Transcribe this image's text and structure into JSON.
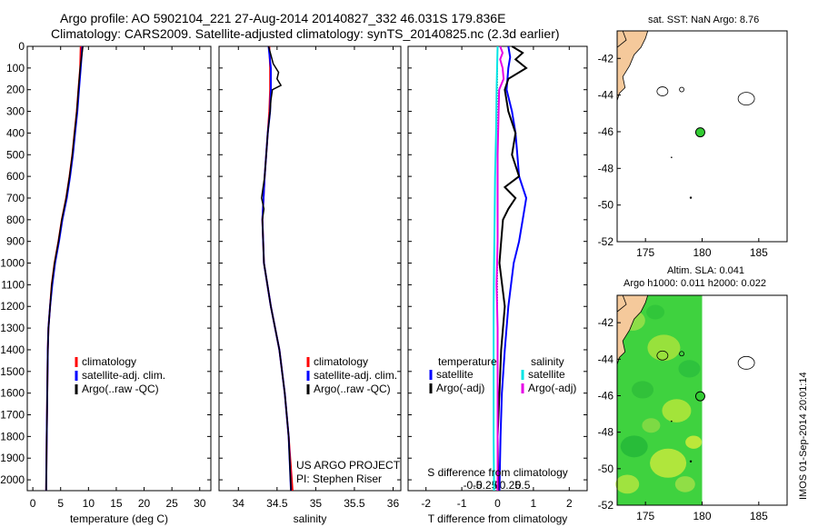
{
  "header": {
    "line1": "Argo profile: AO 5902104_221 27-Aug-2014 20140827_332 46.031S 179.836E",
    "line2": "Climatology: CARS2009. Satellite-adjusted climatology: synTS_20140825.nc (2.3d earlier)"
  },
  "stamp": "IMOS 01-Sep-2014 20:01:14",
  "colors": {
    "climatology": "#ff0000",
    "satellite": "#0000ff",
    "argo": "#000000",
    "sat_salinity": "#00e5e5",
    "argo_salinity": "#e600e6",
    "land": "#f5c99b",
    "sla_green": "#3fd23f",
    "marker": "#33cc33"
  },
  "chart_data": [
    {
      "type": "line",
      "id": "temperature",
      "xlabel": "temperature (deg C)",
      "ylabel": "",
      "xlim": [
        -1,
        32
      ],
      "ylim": [
        2050,
        0
      ],
      "xticks": [
        0,
        5,
        10,
        15,
        20,
        25,
        30
      ],
      "yticks": [
        0,
        100,
        200,
        300,
        400,
        500,
        600,
        700,
        800,
        900,
        1000,
        1100,
        1200,
        1300,
        1400,
        1500,
        1600,
        1700,
        1800,
        1900,
        2000
      ],
      "legend": [
        "climatology",
        "satellite-adj. clim.",
        "Argo(..raw -QC)"
      ],
      "series": [
        {
          "name": "climatology",
          "depth": [
            0,
            100,
            200,
            300,
            400,
            500,
            600,
            700,
            800,
            900,
            1000,
            1100,
            1200,
            1300,
            1400,
            1600,
            1800,
            2050
          ],
          "values": [
            8.6,
            8.5,
            8.2,
            7.9,
            7.5,
            7.1,
            6.6,
            6.0,
            5.2,
            4.6,
            3.9,
            3.4,
            3.1,
            2.8,
            2.7,
            2.6,
            2.5,
            2.4
          ]
        },
        {
          "name": "satellite-adj. clim.",
          "depth": [
            0,
            100,
            200,
            300,
            400,
            500,
            600,
            700,
            800,
            900,
            1000,
            1100,
            1200,
            1300,
            1400,
            1600,
            1800,
            2050
          ],
          "values": [
            8.9,
            8.6,
            8.3,
            8.0,
            7.6,
            7.2,
            6.7,
            6.1,
            5.3,
            4.7,
            4.0,
            3.5,
            3.1,
            2.8,
            2.7,
            2.6,
            2.5,
            2.4
          ]
        },
        {
          "name": "Argo(..raw -QC)",
          "depth": [
            0,
            100,
            200,
            300,
            400,
            500,
            600,
            700,
            800,
            900,
            1000,
            1100,
            1200,
            1300,
            1400,
            1600,
            1800,
            2050
          ],
          "values": [
            9.0,
            8.5,
            8.2,
            7.9,
            7.5,
            7.1,
            6.6,
            6.0,
            5.2,
            4.6,
            3.9,
            3.4,
            3.1,
            2.8,
            2.7,
            2.6,
            2.5,
            2.4
          ]
        }
      ]
    },
    {
      "type": "line",
      "id": "salinity",
      "xlabel": "salinity",
      "xlim": [
        33.75,
        36.1
      ],
      "ylim": [
        2050,
        0
      ],
      "xticks": [
        34,
        34.5,
        35,
        35.5,
        36
      ],
      "legend": [
        "climatology",
        "satellite-adj. clim.",
        "Argo(..raw -QC)"
      ],
      "annotation": [
        "US ARGO PROJECT",
        "PI: Stephen Riser"
      ],
      "series": [
        {
          "name": "climatology",
          "depth": [
            0,
            100,
            200,
            300,
            400,
            600,
            800,
            1000,
            1200,
            1400,
            1600,
            1800,
            2050
          ],
          "values": [
            34.4,
            34.41,
            34.41,
            34.4,
            34.38,
            34.34,
            34.31,
            34.33,
            34.42,
            34.53,
            34.6,
            34.65,
            34.7
          ]
        },
        {
          "name": "satellite-adj. clim.",
          "depth": [
            0,
            100,
            200,
            300,
            400,
            600,
            800,
            1000,
            1200,
            1400,
            1600,
            1800,
            2050
          ],
          "values": [
            34.39,
            34.42,
            34.42,
            34.41,
            34.38,
            34.34,
            34.31,
            34.33,
            34.42,
            34.53,
            34.6,
            34.65,
            34.68
          ]
        },
        {
          "name": "Argo(..raw -QC)",
          "depth": [
            0,
            80,
            120,
            150,
            180,
            200,
            250,
            300,
            400,
            600,
            700,
            750,
            800,
            1000,
            1200,
            1400,
            1600,
            1800,
            2050
          ],
          "values": [
            34.39,
            34.45,
            34.52,
            34.5,
            34.55,
            34.44,
            34.42,
            34.41,
            34.38,
            34.34,
            34.3,
            34.33,
            34.31,
            34.33,
            34.42,
            34.53,
            34.6,
            34.65,
            34.68
          ]
        }
      ]
    },
    {
      "type": "line",
      "id": "difference",
      "xlabel": "T difference from climatology",
      "xlabel_top": "S difference from climatology",
      "xlim": [
        -2.5,
        2.5
      ],
      "ylim": [
        2050,
        0
      ],
      "xticks": [
        -2,
        -1,
        0,
        1,
        2
      ],
      "xticklabels": [
        "-2",
        "-1",
        "0",
        "1",
        "2"
      ],
      "sticks": [
        -0.5,
        -0.25,
        0,
        0.25,
        0.5
      ],
      "sticklabels": [
        "-0.5",
        "-0.25",
        "0",
        "0.25",
        "0.5"
      ],
      "legend_temperature_title": "temperature",
      "legend_salinity_title": "salinity",
      "legend_temperature": [
        "satellite",
        "Argo(-adj)"
      ],
      "legend_salinity": [
        "satellite",
        "Argo(-adj)"
      ],
      "series": [
        {
          "name": "temperature satellite",
          "depth": [
            0,
            50,
            100,
            200,
            300,
            400,
            500,
            600,
            700,
            800,
            900,
            1000,
            1200,
            1400,
            1600,
            1800,
            2050
          ],
          "values": [
            0.3,
            0.35,
            0.3,
            0.25,
            0.4,
            0.5,
            0.55,
            0.6,
            0.8,
            0.7,
            0.6,
            0.45,
            0.3,
            0.2,
            0.12,
            0.08,
            0.05
          ]
        },
        {
          "name": "temperature Argo(-adj)",
          "depth": [
            0,
            30,
            60,
            100,
            150,
            200,
            300,
            400,
            500,
            600,
            650,
            700,
            750,
            800,
            900,
            1000,
            1200,
            1400,
            1600,
            1800,
            2050
          ],
          "values": [
            0.4,
            0.7,
            0.5,
            0.8,
            0.3,
            0.2,
            0.3,
            0.5,
            0.4,
            0.6,
            0.2,
            0.5,
            0.3,
            0.15,
            0.1,
            0.05,
            0.2,
            0.1,
            0.05,
            0.0,
            0.02
          ]
        },
        {
          "name": "salinity satellite",
          "depth": [
            0,
            200,
            400,
            600,
            800,
            1000,
            1200,
            1400,
            1600,
            1800,
            2050
          ],
          "values": [
            0.0,
            -0.02,
            -0.03,
            -0.05,
            -0.06,
            -0.07,
            -0.08,
            -0.08,
            -0.08,
            -0.08,
            -0.07
          ]
        },
        {
          "name": "salinity Argo(-adj)",
          "depth": [
            0,
            30,
            60,
            100,
            150,
            200,
            300,
            500,
            700,
            900,
            1100,
            1300,
            1500,
            2050
          ],
          "values": [
            0.05,
            0.1,
            0.05,
            0.1,
            0.12,
            0.03,
            0.02,
            0.0,
            0.0,
            0.0,
            -0.02,
            0.0,
            0.0,
            0.0
          ]
        }
      ]
    },
    {
      "type": "map",
      "id": "sst-map",
      "title": "sat. SST: NaN Argo: 8.76",
      "xlim": [
        172.5,
        187.5
      ],
      "ylim": [
        -52,
        -40.5
      ],
      "xticks": [
        175,
        180,
        185
      ],
      "yticks": [
        -42,
        -44,
        -46,
        -48,
        -50,
        -52
      ],
      "argo_position": [
        179.836,
        -46.031
      ]
    },
    {
      "type": "map",
      "id": "sla-map",
      "title": "Altim. SLA: 0.041",
      "subtitle": "Argo h1000: 0.011 h2000: 0.022",
      "xlim": [
        172.5,
        187.5
      ],
      "ylim": [
        -52,
        -40.5
      ],
      "xticks": [
        175,
        180,
        185
      ],
      "yticks": [
        -42,
        -44,
        -46,
        -48,
        -50,
        -52
      ],
      "argo_position": [
        179.836,
        -46.031
      ],
      "sla_extent_lon": [
        172.5,
        180.0
      ]
    }
  ]
}
